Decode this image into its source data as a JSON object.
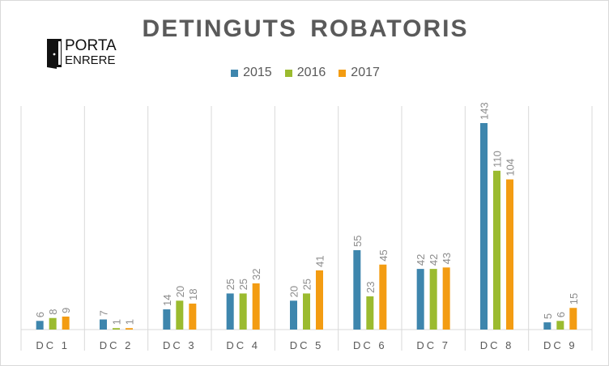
{
  "logo": {
    "line1": "PORTA",
    "line2": "ENRERE"
  },
  "chart_data": {
    "type": "bar",
    "title": "DETINGUTS ROBATORIS",
    "categories": [
      "DC 1",
      "DC 2",
      "DC 3",
      "DC 4",
      "DC 5",
      "DC 6",
      "DC 7",
      "DC 8",
      "DC 9"
    ],
    "series": [
      {
        "name": "2015",
        "color": "#3e86ad",
        "values": [
          6,
          7,
          14,
          25,
          20,
          55,
          42,
          143,
          5
        ]
      },
      {
        "name": "2016",
        "color": "#9bbb2f",
        "values": [
          8,
          1,
          20,
          25,
          25,
          23,
          42,
          110,
          6
        ]
      },
      {
        "name": "2017",
        "color": "#f39c12",
        "values": [
          9,
          1,
          18,
          32,
          41,
          45,
          43,
          104,
          15
        ]
      }
    ],
    "ylim": [
      0,
      150
    ],
    "legend_position": "top",
    "data_labels": true,
    "grid": false
  }
}
